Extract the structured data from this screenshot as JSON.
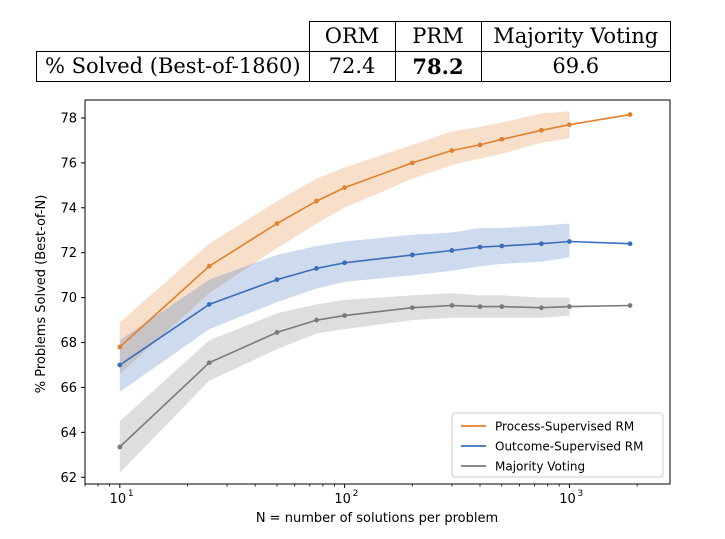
{
  "table": {
    "columns": [
      "ORM",
      "PRM",
      "Majority Voting"
    ],
    "row_label": "% Solved (Best-of-1860)",
    "values": [
      "72.4",
      "78.2",
      "69.6"
    ],
    "best_index": 1
  },
  "chart_data": {
    "type": "line",
    "title": "",
    "xlabel": "N = number of solutions per problem",
    "ylabel": "% Problems Solved (Best-of-N)",
    "x_scale": "log",
    "xlim": [
      7,
      2800
    ],
    "ylim": [
      61.7,
      78.8
    ],
    "x_ticks": [
      10,
      100,
      1000
    ],
    "x_tick_labels": [
      "10",
      "10",
      "10"
    ],
    "x_tick_exponents": [
      "1",
      "2",
      "3"
    ],
    "y_ticks": [
      62,
      64,
      66,
      68,
      70,
      72,
      74,
      76,
      78
    ],
    "y_tick_labels": [
      "62",
      "64",
      "66",
      "68",
      "70",
      "72",
      "74",
      "76",
      "78"
    ],
    "grid": false,
    "legend_position": "lower right",
    "x": [
      10,
      25,
      50,
      75,
      100,
      200,
      300,
      400,
      500,
      750,
      1000,
      1860
    ],
    "series": [
      {
        "name": "Process-Supervised RM",
        "color": "#e1812c",
        "values": [
          67.8,
          71.4,
          73.3,
          74.3,
          74.9,
          76.0,
          76.55,
          76.8,
          77.05,
          77.45,
          77.7,
          78.15
        ],
        "band_lower": [
          66.6,
          70.2,
          72.2,
          73.3,
          74.0,
          75.3,
          75.9,
          76.2,
          76.4,
          76.9,
          77.1,
          null
        ],
        "band_upper": [
          68.9,
          72.4,
          74.3,
          75.3,
          75.8,
          76.8,
          77.4,
          77.6,
          77.8,
          78.2,
          78.3,
          null
        ]
      },
      {
        "name": "Outcome-Supervised RM",
        "color": "#3a6ebc",
        "values": [
          67.0,
          69.7,
          70.8,
          71.3,
          71.55,
          71.9,
          72.1,
          72.25,
          72.3,
          72.4,
          72.5,
          72.4
        ],
        "band_lower": [
          65.8,
          68.6,
          69.8,
          70.4,
          70.7,
          71.0,
          71.2,
          71.4,
          71.5,
          71.6,
          71.8,
          null
        ],
        "band_upper": [
          68.1,
          70.8,
          71.9,
          72.3,
          72.5,
          72.8,
          72.9,
          73.1,
          73.1,
          73.2,
          73.3,
          null
        ]
      },
      {
        "name": "Majority Voting",
        "color": "#7a7a7a",
        "values": [
          63.35,
          67.1,
          68.45,
          69.0,
          69.2,
          69.55,
          69.65,
          69.6,
          69.6,
          69.55,
          69.6,
          69.65
        ],
        "band_lower": [
          62.2,
          66.3,
          67.7,
          68.4,
          68.6,
          69.0,
          69.1,
          69.1,
          69.1,
          69.1,
          69.2,
          null
        ],
        "band_upper": [
          64.5,
          68.1,
          69.3,
          69.7,
          69.9,
          70.1,
          70.2,
          70.1,
          70.1,
          70.0,
          70.0,
          null
        ]
      }
    ]
  }
}
